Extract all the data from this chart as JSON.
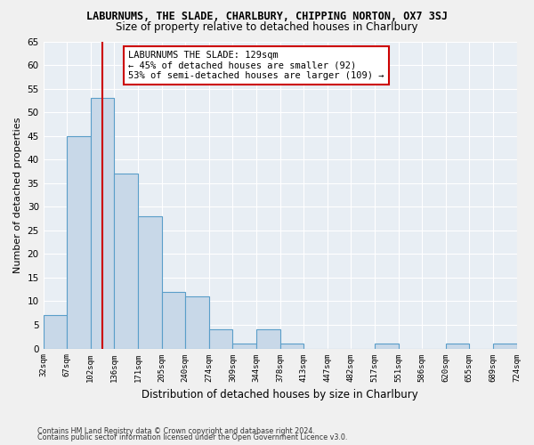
{
  "title": "LABURNUMS, THE SLADE, CHARLBURY, CHIPPING NORTON, OX7 3SJ",
  "subtitle": "Size of property relative to detached houses in Charlbury",
  "xlabel": "Distribution of detached houses by size in Charlbury",
  "ylabel": "Number of detached properties",
  "bar_values": [
    7,
    45,
    53,
    37,
    28,
    12,
    11,
    4,
    1,
    4,
    1,
    0,
    0,
    0,
    1,
    0,
    0,
    1,
    0,
    1
  ],
  "tick_labels": [
    "32sqm",
    "67sqm",
    "102sqm",
    "136sqm",
    "171sqm",
    "205sqm",
    "240sqm",
    "274sqm",
    "309sqm",
    "344sqm",
    "378sqm",
    "413sqm",
    "447sqm",
    "482sqm",
    "517sqm",
    "551sqm",
    "586sqm",
    "620sqm",
    "655sqm",
    "689sqm",
    "724sqm"
  ],
  "bar_color": "#c8d8e8",
  "bar_edge_color": "#5a9ec9",
  "bg_color": "#e8eef4",
  "fig_bg_color": "#f0f0f0",
  "annotation_text": "LABURNUMS THE SLADE: 129sqm\n← 45% of detached houses are smaller (92)\n53% of semi-detached houses are larger (109) →",
  "annotation_box_facecolor": "#ffffff",
  "annotation_box_edgecolor": "#cc0000",
  "vline_x_index": 2,
  "vline_color": "#cc0000",
  "ylim": [
    0,
    65
  ],
  "yticks": [
    0,
    5,
    10,
    15,
    20,
    25,
    30,
    35,
    40,
    45,
    50,
    55,
    60,
    65
  ],
  "footer_line1": "Contains HM Land Registry data © Crown copyright and database right 2024.",
  "footer_line2": "Contains public sector information licensed under the Open Government Licence v3.0."
}
